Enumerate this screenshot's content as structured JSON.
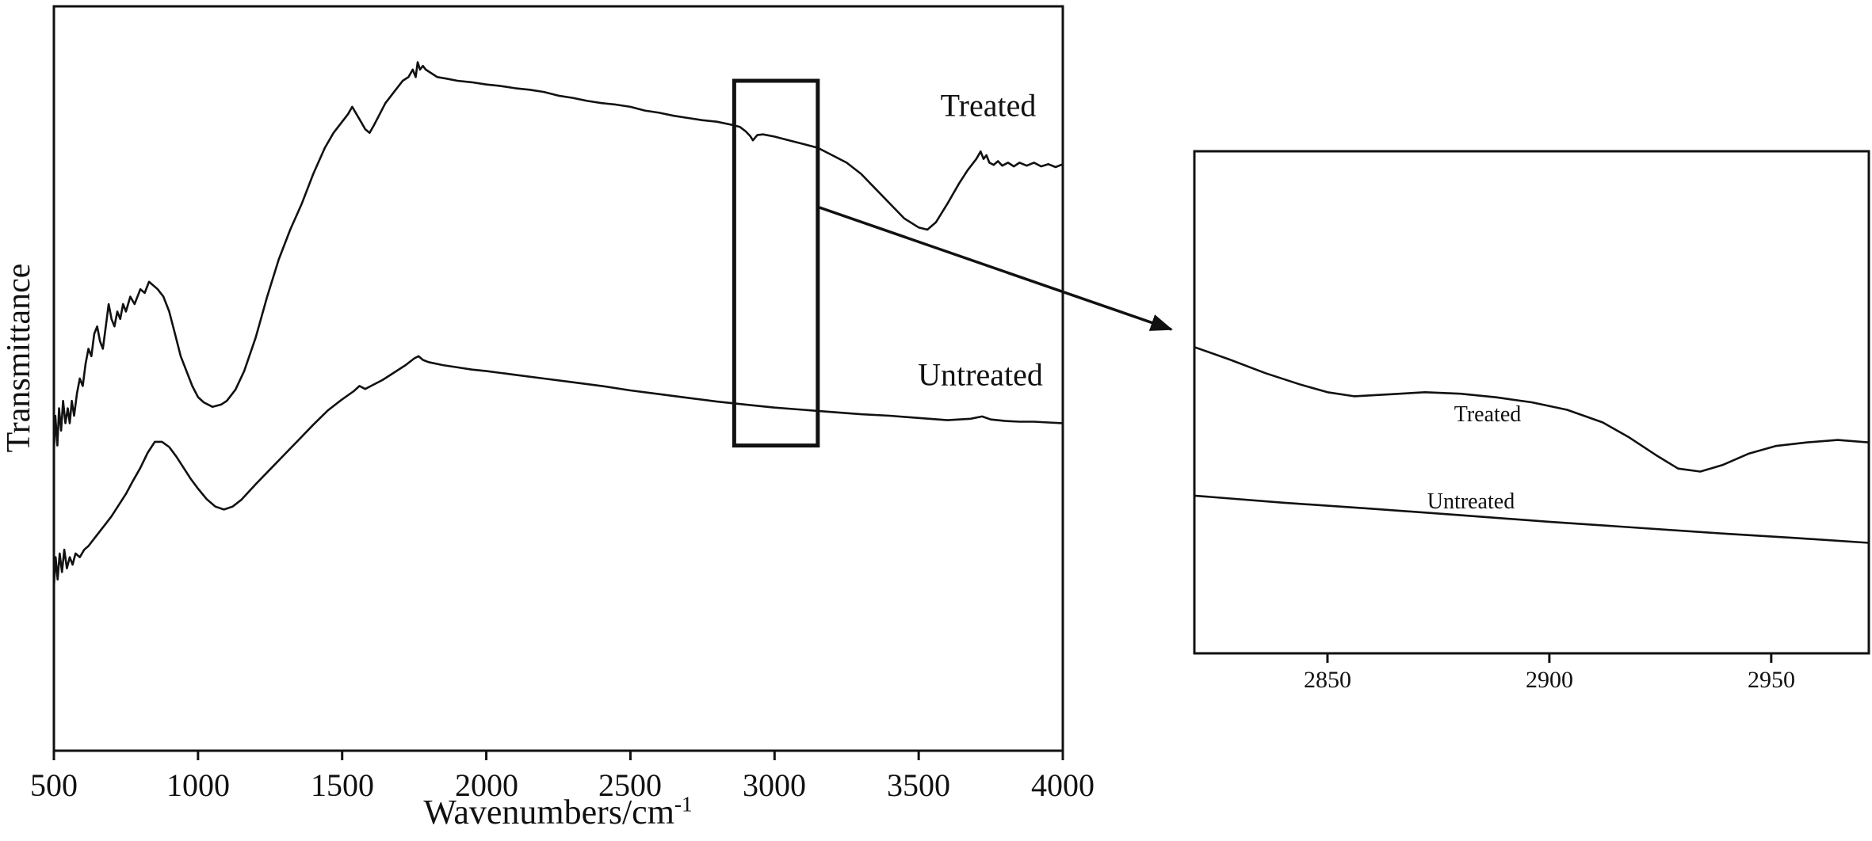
{
  "figure": {
    "description": "FTIR transmittance spectra of treated and untreated samples with zoomed inset of the C-H stretch region",
    "line_color": "#111111",
    "background": "#ffffff",
    "callout_arrow": true
  },
  "chart_data": [
    {
      "id": "main",
      "type": "line",
      "title": "",
      "xlabel": "Wavenumbers/cm",
      "xlabel_superscript": "-1",
      "ylabel": "Transmittance",
      "xlim": [
        500,
        4000
      ],
      "ylim": [
        0,
        1
      ],
      "xticks": [
        500,
        1000,
        1500,
        2000,
        2500,
        3000,
        3500,
        4000
      ],
      "xtick_labels": [
        "500",
        "1000",
        "1500",
        "2000",
        "2500",
        "3000",
        "3500",
        "4000"
      ],
      "yticks": [],
      "grid": false,
      "legend_position": "inline-labels",
      "highlight_region": {
        "x1": 2860,
        "x2": 3150,
        "y1": 0.41,
        "y2": 0.9,
        "note": "region enlarged in inset"
      },
      "series": [
        {
          "name": "Treated",
          "label": "Treated",
          "points": [
            [
              500,
              0.4
            ],
            [
              505,
              0.45
            ],
            [
              512,
              0.41
            ],
            [
              518,
              0.46
            ],
            [
              525,
              0.43
            ],
            [
              532,
              0.47
            ],
            [
              540,
              0.44
            ],
            [
              548,
              0.46
            ],
            [
              555,
              0.44
            ],
            [
              562,
              0.47
            ],
            [
              570,
              0.45
            ],
            [
              580,
              0.48
            ],
            [
              590,
              0.5
            ],
            [
              600,
              0.49
            ],
            [
              610,
              0.52
            ],
            [
              620,
              0.54
            ],
            [
              630,
              0.53
            ],
            [
              640,
              0.56
            ],
            [
              650,
              0.57
            ],
            [
              660,
              0.55
            ],
            [
              670,
              0.54
            ],
            [
              680,
              0.57
            ],
            [
              690,
              0.6
            ],
            [
              700,
              0.58
            ],
            [
              710,
              0.57
            ],
            [
              720,
              0.59
            ],
            [
              730,
              0.58
            ],
            [
              740,
              0.6
            ],
            [
              750,
              0.59
            ],
            [
              765,
              0.61
            ],
            [
              780,
              0.6
            ],
            [
              800,
              0.62
            ],
            [
              815,
              0.615
            ],
            [
              830,
              0.63
            ],
            [
              845,
              0.625
            ],
            [
              860,
              0.62
            ],
            [
              880,
              0.61
            ],
            [
              900,
              0.59
            ],
            [
              920,
              0.56
            ],
            [
              940,
              0.53
            ],
            [
              960,
              0.51
            ],
            [
              980,
              0.49
            ],
            [
              1000,
              0.475
            ],
            [
              1020,
              0.468
            ],
            [
              1050,
              0.462
            ],
            [
              1080,
              0.465
            ],
            [
              1100,
              0.47
            ],
            [
              1130,
              0.485
            ],
            [
              1160,
              0.51
            ],
            [
              1200,
              0.555
            ],
            [
              1240,
              0.61
            ],
            [
              1280,
              0.66
            ],
            [
              1320,
              0.7
            ],
            [
              1360,
              0.735
            ],
            [
              1400,
              0.775
            ],
            [
              1440,
              0.81
            ],
            [
              1470,
              0.83
            ],
            [
              1500,
              0.845
            ],
            [
              1520,
              0.855
            ],
            [
              1535,
              0.865
            ],
            [
              1550,
              0.855
            ],
            [
              1565,
              0.845
            ],
            [
              1580,
              0.835
            ],
            [
              1595,
              0.83
            ],
            [
              1610,
              0.84
            ],
            [
              1630,
              0.855
            ],
            [
              1650,
              0.87
            ],
            [
              1680,
              0.885
            ],
            [
              1710,
              0.9
            ],
            [
              1730,
              0.905
            ],
            [
              1745,
              0.915
            ],
            [
              1755,
              0.905
            ],
            [
              1762,
              0.925
            ],
            [
              1770,
              0.915
            ],
            [
              1780,
              0.92
            ],
            [
              1790,
              0.915
            ],
            [
              1810,
              0.91
            ],
            [
              1830,
              0.905
            ],
            [
              1860,
              0.903
            ],
            [
              1900,
              0.9
            ],
            [
              1950,
              0.898
            ],
            [
              2000,
              0.895
            ],
            [
              2050,
              0.893
            ],
            [
              2100,
              0.89
            ],
            [
              2150,
              0.888
            ],
            [
              2200,
              0.885
            ],
            [
              2250,
              0.88
            ],
            [
              2300,
              0.877
            ],
            [
              2350,
              0.873
            ],
            [
              2400,
              0.87
            ],
            [
              2450,
              0.868
            ],
            [
              2500,
              0.865
            ],
            [
              2550,
              0.86
            ],
            [
              2600,
              0.857
            ],
            [
              2650,
              0.853
            ],
            [
              2700,
              0.85
            ],
            [
              2750,
              0.847
            ],
            [
              2800,
              0.845
            ],
            [
              2850,
              0.841
            ],
            [
              2880,
              0.838
            ],
            [
              2900,
              0.832
            ],
            [
              2915,
              0.826
            ],
            [
              2925,
              0.82
            ],
            [
              2940,
              0.827
            ],
            [
              2960,
              0.828
            ],
            [
              3000,
              0.825
            ],
            [
              3050,
              0.82
            ],
            [
              3100,
              0.815
            ],
            [
              3150,
              0.81
            ],
            [
              3200,
              0.8
            ],
            [
              3250,
              0.79
            ],
            [
              3300,
              0.775
            ],
            [
              3350,
              0.755
            ],
            [
              3400,
              0.735
            ],
            [
              3450,
              0.715
            ],
            [
              3500,
              0.703
            ],
            [
              3530,
              0.7
            ],
            [
              3560,
              0.71
            ],
            [
              3600,
              0.735
            ],
            [
              3640,
              0.762
            ],
            [
              3670,
              0.78
            ],
            [
              3700,
              0.795
            ],
            [
              3715,
              0.805
            ],
            [
              3725,
              0.795
            ],
            [
              3735,
              0.8
            ],
            [
              3745,
              0.79
            ],
            [
              3760,
              0.787
            ],
            [
              3775,
              0.792
            ],
            [
              3790,
              0.786
            ],
            [
              3810,
              0.79
            ],
            [
              3830,
              0.785
            ],
            [
              3850,
              0.79
            ],
            [
              3875,
              0.786
            ],
            [
              3900,
              0.79
            ],
            [
              3925,
              0.785
            ],
            [
              3950,
              0.788
            ],
            [
              3975,
              0.784
            ],
            [
              4000,
              0.788
            ]
          ]
        },
        {
          "name": "Untreated",
          "label": "Untreated",
          "points": [
            [
              500,
              0.22
            ],
            [
              506,
              0.26
            ],
            [
              513,
              0.23
            ],
            [
              520,
              0.265
            ],
            [
              528,
              0.24
            ],
            [
              536,
              0.27
            ],
            [
              545,
              0.245
            ],
            [
              555,
              0.26
            ],
            [
              565,
              0.25
            ],
            [
              575,
              0.265
            ],
            [
              590,
              0.26
            ],
            [
              605,
              0.27
            ],
            [
              620,
              0.275
            ],
            [
              640,
              0.285
            ],
            [
              660,
              0.295
            ],
            [
              680,
              0.305
            ],
            [
              700,
              0.315
            ],
            [
              725,
              0.33
            ],
            [
              750,
              0.345
            ],
            [
              775,
              0.363
            ],
            [
              800,
              0.38
            ],
            [
              825,
              0.4
            ],
            [
              850,
              0.415
            ],
            [
              875,
              0.415
            ],
            [
              900,
              0.408
            ],
            [
              925,
              0.395
            ],
            [
              950,
              0.38
            ],
            [
              975,
              0.365
            ],
            [
              1000,
              0.352
            ],
            [
              1030,
              0.338
            ],
            [
              1060,
              0.328
            ],
            [
              1090,
              0.324
            ],
            [
              1120,
              0.328
            ],
            [
              1150,
              0.337
            ],
            [
              1200,
              0.358
            ],
            [
              1250,
              0.378
            ],
            [
              1300,
              0.398
            ],
            [
              1350,
              0.418
            ],
            [
              1400,
              0.438
            ],
            [
              1450,
              0.457
            ],
            [
              1500,
              0.472
            ],
            [
              1540,
              0.483
            ],
            [
              1560,
              0.49
            ],
            [
              1580,
              0.486
            ],
            [
              1600,
              0.49
            ],
            [
              1640,
              0.498
            ],
            [
              1680,
              0.508
            ],
            [
              1720,
              0.518
            ],
            [
              1750,
              0.527
            ],
            [
              1765,
              0.53
            ],
            [
              1780,
              0.525
            ],
            [
              1800,
              0.522
            ],
            [
              1850,
              0.518
            ],
            [
              1900,
              0.515
            ],
            [
              1950,
              0.512
            ],
            [
              2000,
              0.51
            ],
            [
              2100,
              0.505
            ],
            [
              2200,
              0.5
            ],
            [
              2300,
              0.495
            ],
            [
              2400,
              0.49
            ],
            [
              2500,
              0.484
            ],
            [
              2600,
              0.479
            ],
            [
              2700,
              0.474
            ],
            [
              2800,
              0.469
            ],
            [
              2900,
              0.465
            ],
            [
              3000,
              0.461
            ],
            [
              3100,
              0.458
            ],
            [
              3200,
              0.455
            ],
            [
              3300,
              0.452
            ],
            [
              3400,
              0.45
            ],
            [
              3500,
              0.447
            ],
            [
              3600,
              0.444
            ],
            [
              3680,
              0.446
            ],
            [
              3720,
              0.449
            ],
            [
              3750,
              0.445
            ],
            [
              3800,
              0.443
            ],
            [
              3850,
              0.442
            ],
            [
              3900,
              0.442
            ],
            [
              3950,
              0.441
            ],
            [
              4000,
              0.44
            ]
          ]
        }
      ]
    },
    {
      "id": "inset",
      "type": "line",
      "title": "",
      "xlabel": "",
      "ylabel": "",
      "xlim": [
        2820,
        2972
      ],
      "ylim": [
        0,
        1
      ],
      "xticks": [
        2850,
        2900,
        2950
      ],
      "xtick_labels": [
        "2850",
        "2900",
        "2950"
      ],
      "yticks": [],
      "grid": false,
      "legend_position": "inline-labels",
      "series": [
        {
          "name": "Treated",
          "label": "Treated",
          "points": [
            [
              2820,
              0.61
            ],
            [
              2828,
              0.585
            ],
            [
              2836,
              0.558
            ],
            [
              2844,
              0.535
            ],
            [
              2850,
              0.52
            ],
            [
              2856,
              0.512
            ],
            [
              2864,
              0.516
            ],
            [
              2872,
              0.52
            ],
            [
              2880,
              0.517
            ],
            [
              2888,
              0.51
            ],
            [
              2896,
              0.5
            ],
            [
              2904,
              0.485
            ],
            [
              2912,
              0.46
            ],
            [
              2918,
              0.43
            ],
            [
              2924,
              0.395
            ],
            [
              2929,
              0.368
            ],
            [
              2934,
              0.362
            ],
            [
              2939,
              0.375
            ],
            [
              2945,
              0.398
            ],
            [
              2951,
              0.413
            ],
            [
              2958,
              0.42
            ],
            [
              2965,
              0.425
            ],
            [
              2972,
              0.42
            ]
          ]
        },
        {
          "name": "Untreated",
          "label": "Untreated",
          "points": [
            [
              2820,
              0.314
            ],
            [
              2840,
              0.3
            ],
            [
              2860,
              0.288
            ],
            [
              2880,
              0.275
            ],
            [
              2900,
              0.262
            ],
            [
              2920,
              0.25
            ],
            [
              2940,
              0.238
            ],
            [
              2955,
              0.23
            ],
            [
              2972,
              0.22
            ]
          ]
        }
      ]
    }
  ]
}
